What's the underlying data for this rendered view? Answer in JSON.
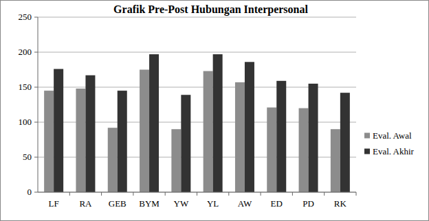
{
  "chart_data": {
    "type": "bar",
    "title": "Grafik Pre-Post Hubungan Interpersonal",
    "categories": [
      "LF",
      "RA",
      "GEB",
      "BYM",
      "YW",
      "YL",
      "AW",
      "ED",
      "PD",
      "RK"
    ],
    "series": [
      {
        "name": "Eval. Awal",
        "color": "#8c8c8c",
        "values": [
          145,
          148,
          92,
          175,
          90,
          173,
          157,
          121,
          120,
          90
        ]
      },
      {
        "name": "Eval. Akhir",
        "color": "#333333",
        "values": [
          176,
          167,
          145,
          197,
          139,
          197,
          186,
          159,
          155,
          142
        ]
      }
    ],
    "ylim": [
      0,
      250
    ],
    "yticks": [
      0,
      50,
      100,
      150,
      200,
      250
    ],
    "grid": true,
    "legend": "right"
  }
}
